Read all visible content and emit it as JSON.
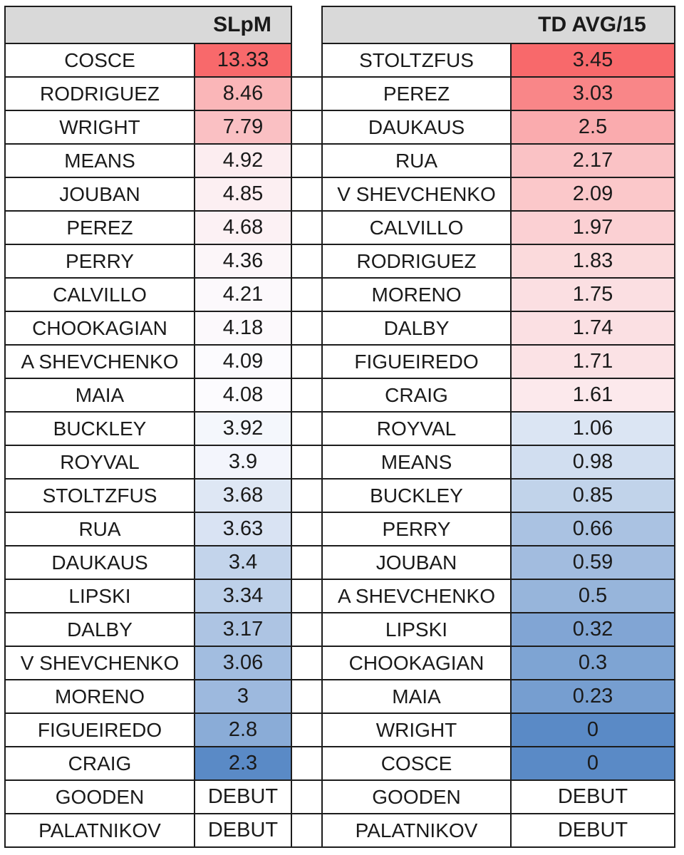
{
  "style": {
    "header_bg": "#D9D9D9",
    "border_color": "#1C1C1C",
    "text_color": "#1A1A1A"
  },
  "chart_data": [
    {
      "type": "table",
      "header": "SLpM",
      "legend": "heatmap: high=red, low=blue, DEBUT=no fill",
      "color_scale": {
        "min": 2.3,
        "mid": 4.0,
        "max": 13.33,
        "min_color": "#5A8AC6",
        "mid_color": "#FCFCFF",
        "max_color": "#F8696B"
      },
      "rows": [
        {
          "name": "COSCE",
          "value": "13.33",
          "color": "#F8696B"
        },
        {
          "name": "RODRIGUEZ",
          "value": "8.46",
          "color": "#FAB6B8"
        },
        {
          "name": "WRIGHT",
          "value": "7.79",
          "color": "#FAC0C3"
        },
        {
          "name": "MEANS",
          "value": "4.92",
          "color": "#FCEDF0"
        },
        {
          "name": "JOUBAN",
          "value": "4.85",
          "color": "#FCEFF2"
        },
        {
          "name": "PEREZ",
          "value": "4.68",
          "color": "#FCF1F4"
        },
        {
          "name": "PERRY",
          "value": "4.36",
          "color": "#FCF6F9"
        },
        {
          "name": "CALVILLO",
          "value": "4.21",
          "color": "#FCF9FC"
        },
        {
          "name": "CHOOKAGIAN",
          "value": "4.18",
          "color": "#FCF9FC"
        },
        {
          "name": "A SHEVCHENKO",
          "value": "4.09",
          "color": "#FCFBFE"
        },
        {
          "name": "MAIA",
          "value": "4.08",
          "color": "#FCFBFE"
        },
        {
          "name": "BUCKLEY",
          "value": "3.92",
          "color": "#F4F7FC"
        },
        {
          "name": "ROYVAL",
          "value": "3.9",
          "color": "#F3F5FC"
        },
        {
          "name": "STOLTZFUS",
          "value": "3.68",
          "color": "#DEE7F4"
        },
        {
          "name": "RUA",
          "value": "3.63",
          "color": "#D9E3F3"
        },
        {
          "name": "DAUKAUS",
          "value": "3.4",
          "color": "#C3D4EB"
        },
        {
          "name": "LIPSKI",
          "value": "3.34",
          "color": "#BDD0E9"
        },
        {
          "name": "DALBY",
          "value": "3.17",
          "color": "#ADC4E3"
        },
        {
          "name": "V SHEVCHENKO",
          "value": "3.06",
          "color": "#A2BDE0"
        },
        {
          "name": "MORENO",
          "value": "3",
          "color": "#9DB9DE"
        },
        {
          "name": "FIGUEIREDO",
          "value": "2.8",
          "color": "#8AACD7"
        },
        {
          "name": "CRAIG",
          "value": "2.3",
          "color": "#5A8AC6"
        },
        {
          "name": "GOODEN",
          "value": "DEBUT",
          "color": "#FFFFFF"
        },
        {
          "name": "PALATNIKOV",
          "value": "DEBUT",
          "color": "#FFFFFF"
        }
      ]
    },
    {
      "type": "table",
      "header": "TD AVG/15",
      "legend": "heatmap: high=red, low=blue, DEBUT=no fill",
      "color_scale": {
        "min": 0,
        "mid": 1.335,
        "max": 3.45,
        "min_color": "#5A8AC6",
        "mid_color": "#FCFCFF",
        "max_color": "#F8696B"
      },
      "rows": [
        {
          "name": "STOLTZFUS",
          "value": "3.45",
          "color": "#F8696B"
        },
        {
          "name": "PEREZ",
          "value": "3.03",
          "color": "#F98688"
        },
        {
          "name": "DAUKAUS",
          "value": "2.5",
          "color": "#FAABAE"
        },
        {
          "name": "RUA",
          "value": "2.17",
          "color": "#FAC2C5"
        },
        {
          "name": "V SHEVCHENKO",
          "value": "2.09",
          "color": "#FBC8CA"
        },
        {
          "name": "CALVILLO",
          "value": "1.97",
          "color": "#FBD0D3"
        },
        {
          "name": "RODRIGUEZ",
          "value": "1.83",
          "color": "#FBDADC"
        },
        {
          "name": "MORENO",
          "value": "1.75",
          "color": "#FBDFE2"
        },
        {
          "name": "DALBY",
          "value": "1.74",
          "color": "#FBE0E3"
        },
        {
          "name": "FIGUEIREDO",
          "value": "1.71",
          "color": "#FBE2E5"
        },
        {
          "name": "CRAIG",
          "value": "1.61",
          "color": "#FCE9EC"
        },
        {
          "name": "ROYVAL",
          "value": "1.06",
          "color": "#DBE5F3"
        },
        {
          "name": "MEANS",
          "value": "0.98",
          "color": "#D1DEF0"
        },
        {
          "name": "BUCKLEY",
          "value": "0.85",
          "color": "#C1D3EA"
        },
        {
          "name": "PERRY",
          "value": "0.66",
          "color": "#AAC2E2"
        },
        {
          "name": "JOUBAN",
          "value": "0.59",
          "color": "#A2BCDF"
        },
        {
          "name": "A SHEVCHENKO",
          "value": "0.5",
          "color": "#97B5DB"
        },
        {
          "name": "LIPSKI",
          "value": "0.32",
          "color": "#81A5D4"
        },
        {
          "name": "CHOOKAGIAN",
          "value": "0.3",
          "color": "#7EA4D3"
        },
        {
          "name": "MAIA",
          "value": "0.23",
          "color": "#769ED0"
        },
        {
          "name": "WRIGHT",
          "value": "0",
          "color": "#5A8AC6"
        },
        {
          "name": "COSCE",
          "value": "0",
          "color": "#5A8AC6"
        },
        {
          "name": "GOODEN",
          "value": "DEBUT",
          "color": "#FFFFFF"
        },
        {
          "name": "PALATNIKOV",
          "value": "DEBUT",
          "color": "#FFFFFF"
        }
      ]
    }
  ]
}
